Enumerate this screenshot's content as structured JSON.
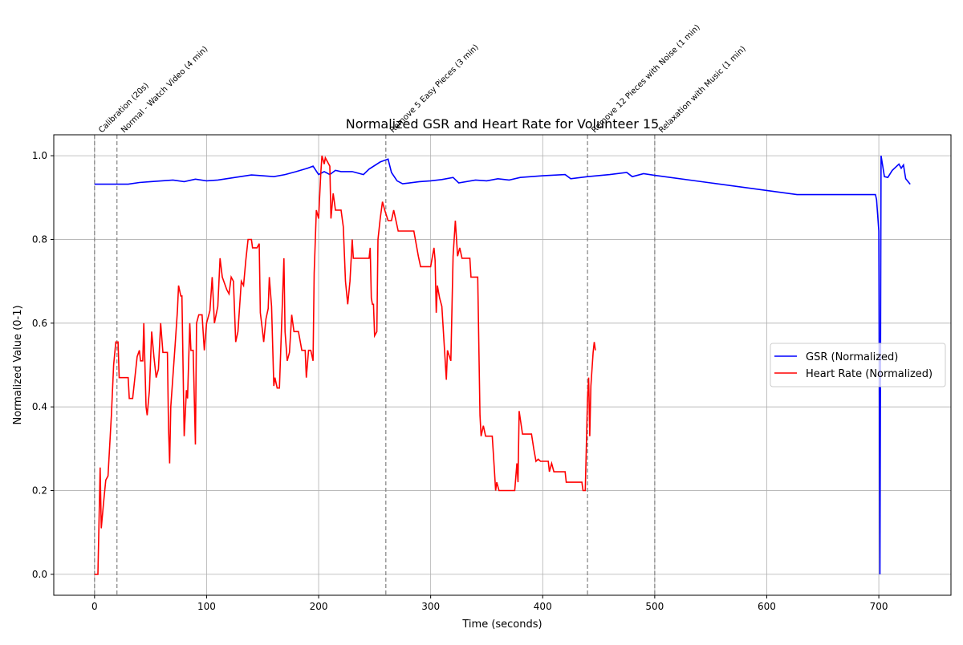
{
  "chart_data": {
    "type": "line",
    "title": "Normalized GSR and Heart Rate for Volunteer 15",
    "xlabel": "Time (seconds)",
    "ylabel": "Normalized Value (0-1)",
    "xlim": [
      -36.4,
      764.4
    ],
    "ylim": [
      -0.05,
      1.05
    ],
    "xticks": [
      0,
      100,
      200,
      300,
      400,
      500,
      600,
      700
    ],
    "yticks": [
      {
        "value": 0,
        "label": "0.0"
      },
      0.2,
      0.4,
      0.6,
      0.8,
      {
        "value": 1,
        "label": "1.0"
      }
    ],
    "grid": true,
    "legend_loc": "center right",
    "annotations": [
      {
        "x": 0,
        "text": "Calibration (20s)"
      },
      {
        "x": 20,
        "text": "Normal - Watch Video (4 min)"
      },
      {
        "x": 260,
        "text": "Remove 5 Easy Pieces (3 min)"
      },
      {
        "x": 440,
        "text": "Remove 12 Pieces with Noise (1 min)"
      },
      {
        "x": 500,
        "text": "Relaxation with Music (1 min)"
      }
    ],
    "series": [
      {
        "name": "GSR (Normalized)",
        "color": "#0000ff",
        "x": [
          0,
          20,
          30,
          40,
          50,
          60,
          70,
          80,
          90,
          100,
          110,
          120,
          130,
          140,
          150,
          160,
          170,
          180,
          190,
          195,
          200,
          205,
          210,
          215,
          220,
          230,
          240,
          245,
          255,
          262,
          265,
          270,
          275,
          290,
          300,
          310,
          320,
          325,
          340,
          350,
          360,
          370,
          380,
          400,
          420,
          425,
          440,
          460,
          475,
          480,
          490,
          500,
          550,
          627,
          690,
          697,
          698,
          700,
          701,
          702,
          705,
          708,
          712,
          718,
          720,
          722,
          724,
          728
        ],
        "values": [
          0.932,
          0.932,
          0.932,
          0.936,
          0.938,
          0.94,
          0.942,
          0.938,
          0.944,
          0.94,
          0.942,
          0.946,
          0.95,
          0.954,
          0.952,
          0.95,
          0.955,
          0.962,
          0.97,
          0.975,
          0.955,
          0.962,
          0.955,
          0.965,
          0.962,
          0.962,
          0.955,
          0.968,
          0.985,
          0.992,
          0.96,
          0.94,
          0.933,
          0.938,
          0.94,
          0.943,
          0.948,
          0.935,
          0.942,
          0.94,
          0.945,
          0.942,
          0.948,
          0.952,
          0.955,
          0.945,
          0.95,
          0.955,
          0.96,
          0.95,
          0.957,
          0.953,
          0.935,
          0.907,
          0.907,
          0.907,
          0.895,
          0.82,
          0,
          1,
          0.95,
          0.948,
          0.965,
          0.98,
          0.97,
          0.978,
          0.945,
          0.932
        ]
      },
      {
        "name": "Heart Rate (Normalized)",
        "color": "#ff0000",
        "x": [
          0,
          3,
          5,
          6,
          8,
          10,
          12,
          15,
          17,
          19,
          21,
          22,
          30,
          31,
          34,
          38,
          40,
          41,
          43,
          44,
          46,
          47,
          49,
          51,
          53,
          55,
          57,
          59,
          61,
          65,
          66,
          67,
          68,
          72,
          74,
          75,
          77,
          78,
          80,
          82,
          83,
          85,
          86,
          88,
          90,
          91,
          93,
          96,
          98,
          100,
          103,
          105,
          107,
          110,
          112,
          114,
          118,
          120,
          122,
          124,
          126,
          128,
          131,
          133,
          135,
          137,
          140,
          141,
          145,
          147,
          148,
          150,
          151,
          153,
          155,
          156,
          158,
          160,
          161,
          163,
          165,
          167,
          169,
          170,
          172,
          174,
          176,
          178,
          182,
          185,
          188,
          189,
          191,
          193,
          195,
          196,
          198,
          200,
          202,
          203,
          205,
          206,
          210,
          211,
          213,
          215,
          220,
          222,
          224,
          226,
          228,
          230,
          231,
          245,
          246,
          247,
          248,
          249,
          250,
          252,
          253,
          255,
          257,
          259,
          262,
          265,
          267,
          271,
          285,
          289,
          291,
          300,
          303,
          304,
          305,
          306,
          308,
          310,
          314,
          315,
          318,
          320,
          322,
          324,
          326,
          328,
          335,
          336,
          342,
          344,
          345,
          347,
          349,
          355,
          357,
          358,
          359,
          361,
          375,
          377,
          378,
          379,
          382,
          390,
          392,
          394,
          396,
          398,
          405,
          406,
          408,
          410,
          420,
          421,
          435,
          436,
          438,
          440,
          441,
          442,
          443,
          445,
          446,
          447
        ],
        "values": [
          0,
          0,
          0.255,
          0.11,
          0.17,
          0.225,
          0.235,
          0.38,
          0.5,
          0.555,
          0.555,
          0.47,
          0.47,
          0.42,
          0.42,
          0.52,
          0.535,
          0.51,
          0.51,
          0.6,
          0.4,
          0.38,
          0.44,
          0.58,
          0.52,
          0.47,
          0.49,
          0.6,
          0.53,
          0.53,
          0.35,
          0.265,
          0.4,
          0.55,
          0.63,
          0.69,
          0.665,
          0.665,
          0.33,
          0.44,
          0.42,
          0.6,
          0.535,
          0.535,
          0.31,
          0.6,
          0.62,
          0.62,
          0.535,
          0.6,
          0.63,
          0.71,
          0.6,
          0.64,
          0.755,
          0.71,
          0.68,
          0.67,
          0.71,
          0.7,
          0.555,
          0.58,
          0.7,
          0.69,
          0.75,
          0.8,
          0.8,
          0.78,
          0.78,
          0.79,
          0.625,
          0.58,
          0.555,
          0.61,
          0.635,
          0.71,
          0.64,
          0.45,
          0.47,
          0.445,
          0.445,
          0.6,
          0.755,
          0.58,
          0.51,
          0.53,
          0.62,
          0.58,
          0.58,
          0.535,
          0.535,
          0.47,
          0.535,
          0.535,
          0.51,
          0.72,
          0.87,
          0.85,
          0.96,
          1,
          0.98,
          0.995,
          0.975,
          0.85,
          0.91,
          0.87,
          0.87,
          0.83,
          0.7,
          0.645,
          0.7,
          0.8,
          0.755,
          0.755,
          0.78,
          0.66,
          0.645,
          0.645,
          0.57,
          0.58,
          0.8,
          0.85,
          0.89,
          0.87,
          0.845,
          0.845,
          0.87,
          0.82,
          0.82,
          0.76,
          0.735,
          0.735,
          0.78,
          0.75,
          0.625,
          0.69,
          0.66,
          0.64,
          0.465,
          0.535,
          0.51,
          0.76,
          0.845,
          0.76,
          0.78,
          0.755,
          0.755,
          0.71,
          0.71,
          0.38,
          0.33,
          0.355,
          0.33,
          0.33,
          0.245,
          0.2,
          0.22,
          0.2,
          0.2,
          0.265,
          0.22,
          0.39,
          0.335,
          0.335,
          0.3,
          0.27,
          0.275,
          0.27,
          0.27,
          0.245,
          0.265,
          0.245,
          0.245,
          0.22,
          0.22,
          0.2,
          0.2,
          0.42,
          0.47,
          0.33,
          0.45,
          0.53,
          0.555,
          0.535
        ]
      }
    ]
  }
}
